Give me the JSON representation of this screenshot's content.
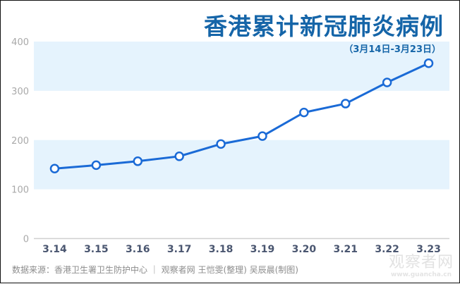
{
  "header": {
    "title": "香港累计新冠肺炎病例",
    "subtitle": "（3月14日-3月23日）"
  },
  "footer": {
    "source": "数据来源：香港卫生署卫生防护中心  ｜  观察者网 王恺雯(整理) 吴辰晨(制图)"
  },
  "watermark": {
    "brand": "观察者网",
    "url": "www.guancha.cn"
  },
  "colors": {
    "line": "#1a6ad6",
    "band": "#e5f3fd",
    "title": "#1565a8"
  },
  "chart_data": {
    "type": "line",
    "title": "香港累计新冠肺炎病例",
    "subtitle": "（3月14日-3月23日）",
    "xlabel": "",
    "ylabel": "",
    "categories": [
      "3.14",
      "3.15",
      "3.16",
      "3.17",
      "3.18",
      "3.19",
      "3.20",
      "3.21",
      "3.22",
      "3.23"
    ],
    "series": [
      {
        "name": "香港累计新冠肺炎病例",
        "values": [
          142,
          149,
          157,
          167,
          192,
          208,
          256,
          274,
          317,
          356
        ]
      }
    ],
    "ylim": [
      0,
      400
    ],
    "yticks": [
      "0",
      "100",
      "200",
      "300",
      "400"
    ],
    "grid": "alternating horizontal bands",
    "legend": "none"
  }
}
